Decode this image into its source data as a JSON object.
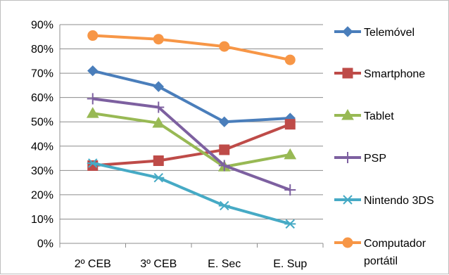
{
  "chart_data": {
    "type": "line",
    "title": "",
    "xlabel": "",
    "ylabel": "",
    "categories": [
      "2º CEB",
      "3º CEB",
      "E. Sec",
      "E. Sup"
    ],
    "ylim": [
      0,
      90
    ],
    "y_unit": "%",
    "y_ticks": [
      "0%",
      "10%",
      "20%",
      "30%",
      "40%",
      "50%",
      "60%",
      "70%",
      "80%",
      "90%"
    ],
    "grid": "horizontal",
    "legend_position": "right",
    "series": [
      {
        "name": "Telemóvel",
        "values": [
          71,
          64.5,
          50,
          51.5
        ],
        "color": "#4a7ebb",
        "marker": "diamond"
      },
      {
        "name": "Smartphone",
        "values": [
          32,
          34,
          38.5,
          49
        ],
        "color": "#be4b48",
        "marker": "square"
      },
      {
        "name": "Tablet",
        "values": [
          53.5,
          49.5,
          31.5,
          36.5
        ],
        "color": "#98b954",
        "marker": "triangle"
      },
      {
        "name": "PSP",
        "values": [
          59.5,
          56,
          32,
          22
        ],
        "color": "#7d60a0",
        "marker": "plus"
      },
      {
        "name": "Nintendo 3DS",
        "values": [
          33,
          27,
          15.5,
          8
        ],
        "color": "#46aac5",
        "marker": "star"
      },
      {
        "name": "Computador portátil",
        "values": [
          85.5,
          84,
          81,
          75.5
        ],
        "color": "#f79646",
        "marker": "circle"
      }
    ]
  }
}
